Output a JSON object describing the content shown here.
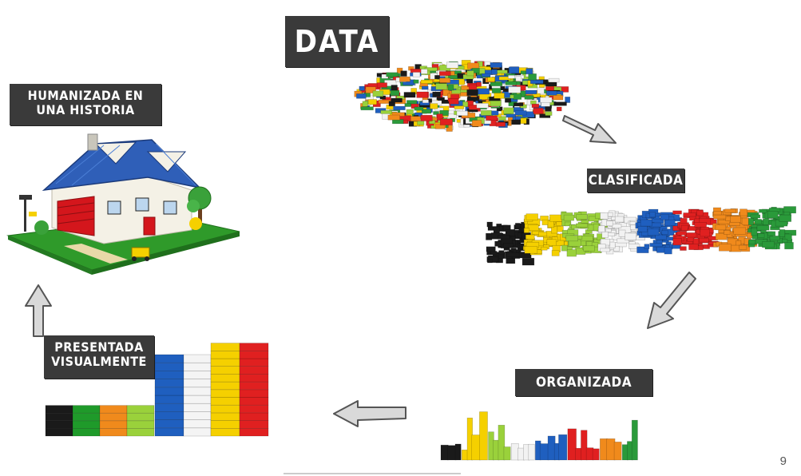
{
  "labels": {
    "data": "DATA",
    "clasificada": "CLASIFICADA",
    "organizada": "ORGANIZADA",
    "presentada_line1": "PRESENTADA",
    "presentada_line2": "VISUALMENTE",
    "humanizada_line1": "HUMANIZADA EN",
    "humanizada_line2": "UNA HISTORIA"
  },
  "page_number": "9",
  "colors": {
    "label_bg": "#3a3a3a",
    "arrow_fill": "#d9d9d9",
    "arrow_stroke": "#555555",
    "brick_palette": [
      "#1a1a1a",
      "#f5d000",
      "#9ad13b",
      "#f2f2f2",
      "#1f5fbf",
      "#e02020",
      "#f08a1c",
      "#2a9a3a"
    ]
  },
  "presented_bars": {
    "order": [
      "black",
      "green",
      "orange",
      "lime",
      "blue",
      "white",
      "yellow",
      "red"
    ],
    "relative_heights": [
      0.32,
      0.32,
      0.32,
      0.32,
      0.85,
      0.85,
      0.97,
      0.97
    ]
  }
}
